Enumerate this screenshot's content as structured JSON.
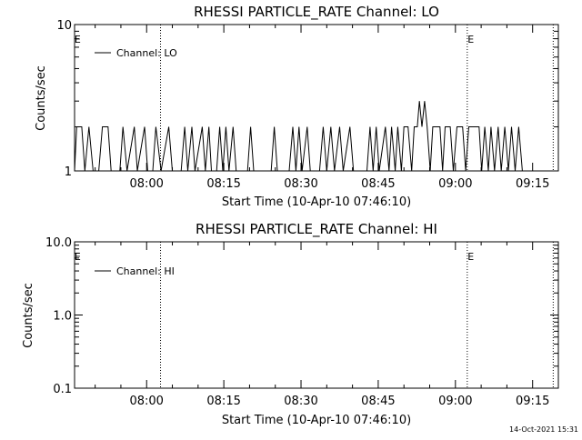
{
  "footer_timestamp": "14-Oct-2021 15:31",
  "chart_data": [
    {
      "type": "line",
      "title": "RHESSI PARTICLE_RATE Channel: LO",
      "xlabel": "Start Time (10-Apr-10 07:46:10)",
      "ylabel": "Counts/sec",
      "yscale": "log",
      "ylim": [
        1,
        10
      ],
      "y_ticks": [
        {
          "v": 1,
          "label": "1"
        },
        {
          "v": 10,
          "label": "10"
        }
      ],
      "xlim_min": [
        0,
        94
      ],
      "x_ticks": [
        {
          "t": 14,
          "label": "08:00"
        },
        {
          "t": 29,
          "label": "08:15"
        },
        {
          "t": 44,
          "label": "08:30"
        },
        {
          "t": 59,
          "label": "08:45"
        },
        {
          "t": 74,
          "label": "09:00"
        },
        {
          "t": 89,
          "label": "09:15"
        }
      ],
      "event_lines_min": [
        16.7,
        76.3,
        93.0
      ],
      "event_markers": [
        {
          "t": 0.6,
          "label": "E"
        },
        {
          "t": 77.0,
          "label": "E"
        }
      ],
      "legend": "Channel: LO",
      "series": [
        {
          "name": "Channel: LO",
          "points": [
            [
              0,
              1
            ],
            [
              0.4,
              2
            ],
            [
              1.4,
              2
            ],
            [
              2,
              1
            ],
            [
              2.8,
              2
            ],
            [
              3.6,
              1
            ],
            [
              4.7,
              1
            ],
            [
              5.4,
              2
            ],
            [
              6.5,
              2
            ],
            [
              7.1,
              1
            ],
            [
              8.8,
              1
            ],
            [
              9.4,
              2
            ],
            [
              10.2,
              1
            ],
            [
              11.6,
              2
            ],
            [
              12.2,
              1
            ],
            [
              13.6,
              2
            ],
            [
              14.2,
              1
            ],
            [
              15.2,
              1
            ],
            [
              15.8,
              2
            ],
            [
              16.8,
              1
            ],
            [
              18.3,
              2
            ],
            [
              19.0,
              1
            ],
            [
              20.7,
              1
            ],
            [
              21.4,
              2
            ],
            [
              22.0,
              1
            ],
            [
              22.8,
              2
            ],
            [
              23.4,
              1
            ],
            [
              24.8,
              2
            ],
            [
              25.4,
              1
            ],
            [
              26.1,
              2
            ],
            [
              26.6,
              1
            ],
            [
              27.6,
              1
            ],
            [
              28.2,
              2
            ],
            [
              28.8,
              1
            ],
            [
              29.4,
              2
            ],
            [
              30.0,
              1
            ],
            [
              30.8,
              2
            ],
            [
              31.4,
              1
            ],
            [
              33.6,
              1
            ],
            [
              34.2,
              2
            ],
            [
              34.8,
              1
            ],
            [
              38.2,
              1
            ],
            [
              38.8,
              2
            ],
            [
              39.4,
              1
            ],
            [
              41.7,
              1
            ],
            [
              42.4,
              2
            ],
            [
              43.0,
              1
            ],
            [
              43.6,
              2
            ],
            [
              44.2,
              1
            ],
            [
              45.2,
              2
            ],
            [
              45.8,
              1
            ],
            [
              47.6,
              1
            ],
            [
              48.3,
              2
            ],
            [
              49.0,
              1
            ],
            [
              49.8,
              2
            ],
            [
              50.5,
              1
            ],
            [
              51.5,
              2
            ],
            [
              52.2,
              1
            ],
            [
              53.5,
              2
            ],
            [
              54.2,
              1
            ],
            [
              56.8,
              1
            ],
            [
              57.4,
              2
            ],
            [
              58.0,
              1
            ],
            [
              58.6,
              2
            ],
            [
              59.2,
              1
            ],
            [
              60.4,
              2
            ],
            [
              61.1,
              1
            ],
            [
              61.6,
              2
            ],
            [
              62.3,
              1
            ],
            [
              62.8,
              2
            ],
            [
              63.5,
              1
            ],
            [
              64.0,
              2
            ],
            [
              64.8,
              2
            ],
            [
              65.5,
              1
            ],
            [
              66.0,
              2
            ],
            [
              66.6,
              2
            ],
            [
              67.0,
              3
            ],
            [
              67.5,
              2
            ],
            [
              68.0,
              3
            ],
            [
              68.5,
              2
            ],
            [
              69.1,
              1
            ],
            [
              69.6,
              2
            ],
            [
              71.0,
              2
            ],
            [
              71.5,
              1
            ],
            [
              72.0,
              2
            ],
            [
              73.0,
              2
            ],
            [
              73.6,
              1
            ],
            [
              74.3,
              2
            ],
            [
              75.4,
              2
            ],
            [
              76.0,
              1
            ],
            [
              76.6,
              2
            ],
            [
              78.6,
              2
            ],
            [
              79.1,
              1
            ],
            [
              79.7,
              2
            ],
            [
              80.4,
              1
            ],
            [
              80.9,
              2
            ],
            [
              81.6,
              1
            ],
            [
              82.3,
              2
            ],
            [
              82.9,
              1
            ],
            [
              83.6,
              2
            ],
            [
              84.3,
              1
            ],
            [
              84.9,
              2
            ],
            [
              85.6,
              1
            ],
            [
              86.3,
              2
            ],
            [
              87.0,
              1
            ]
          ]
        }
      ]
    },
    {
      "type": "line",
      "title": "RHESSI PARTICLE_RATE Channel: HI",
      "xlabel": "Start Time (10-Apr-10 07:46:10)",
      "ylabel": "Counts/sec",
      "yscale": "log",
      "ylim": [
        0.1,
        10
      ],
      "y_ticks": [
        {
          "v": 0.1,
          "label": "0.1"
        },
        {
          "v": 1,
          "label": "1.0"
        },
        {
          "v": 10,
          "label": "10.0"
        }
      ],
      "xlim_min": [
        0,
        94
      ],
      "x_ticks": [
        {
          "t": 14,
          "label": "08:00"
        },
        {
          "t": 29,
          "label": "08:15"
        },
        {
          "t": 44,
          "label": "08:30"
        },
        {
          "t": 59,
          "label": "08:45"
        },
        {
          "t": 74,
          "label": "09:00"
        },
        {
          "t": 89,
          "label": "09:15"
        }
      ],
      "event_lines_min": [
        16.7,
        76.3,
        93.0
      ],
      "event_markers": [
        {
          "t": 0.6,
          "label": "E"
        },
        {
          "t": 77.0,
          "label": "E"
        }
      ],
      "legend": "Channel: HI",
      "series": [
        {
          "name": "Channel: HI",
          "points": []
        }
      ]
    }
  ]
}
